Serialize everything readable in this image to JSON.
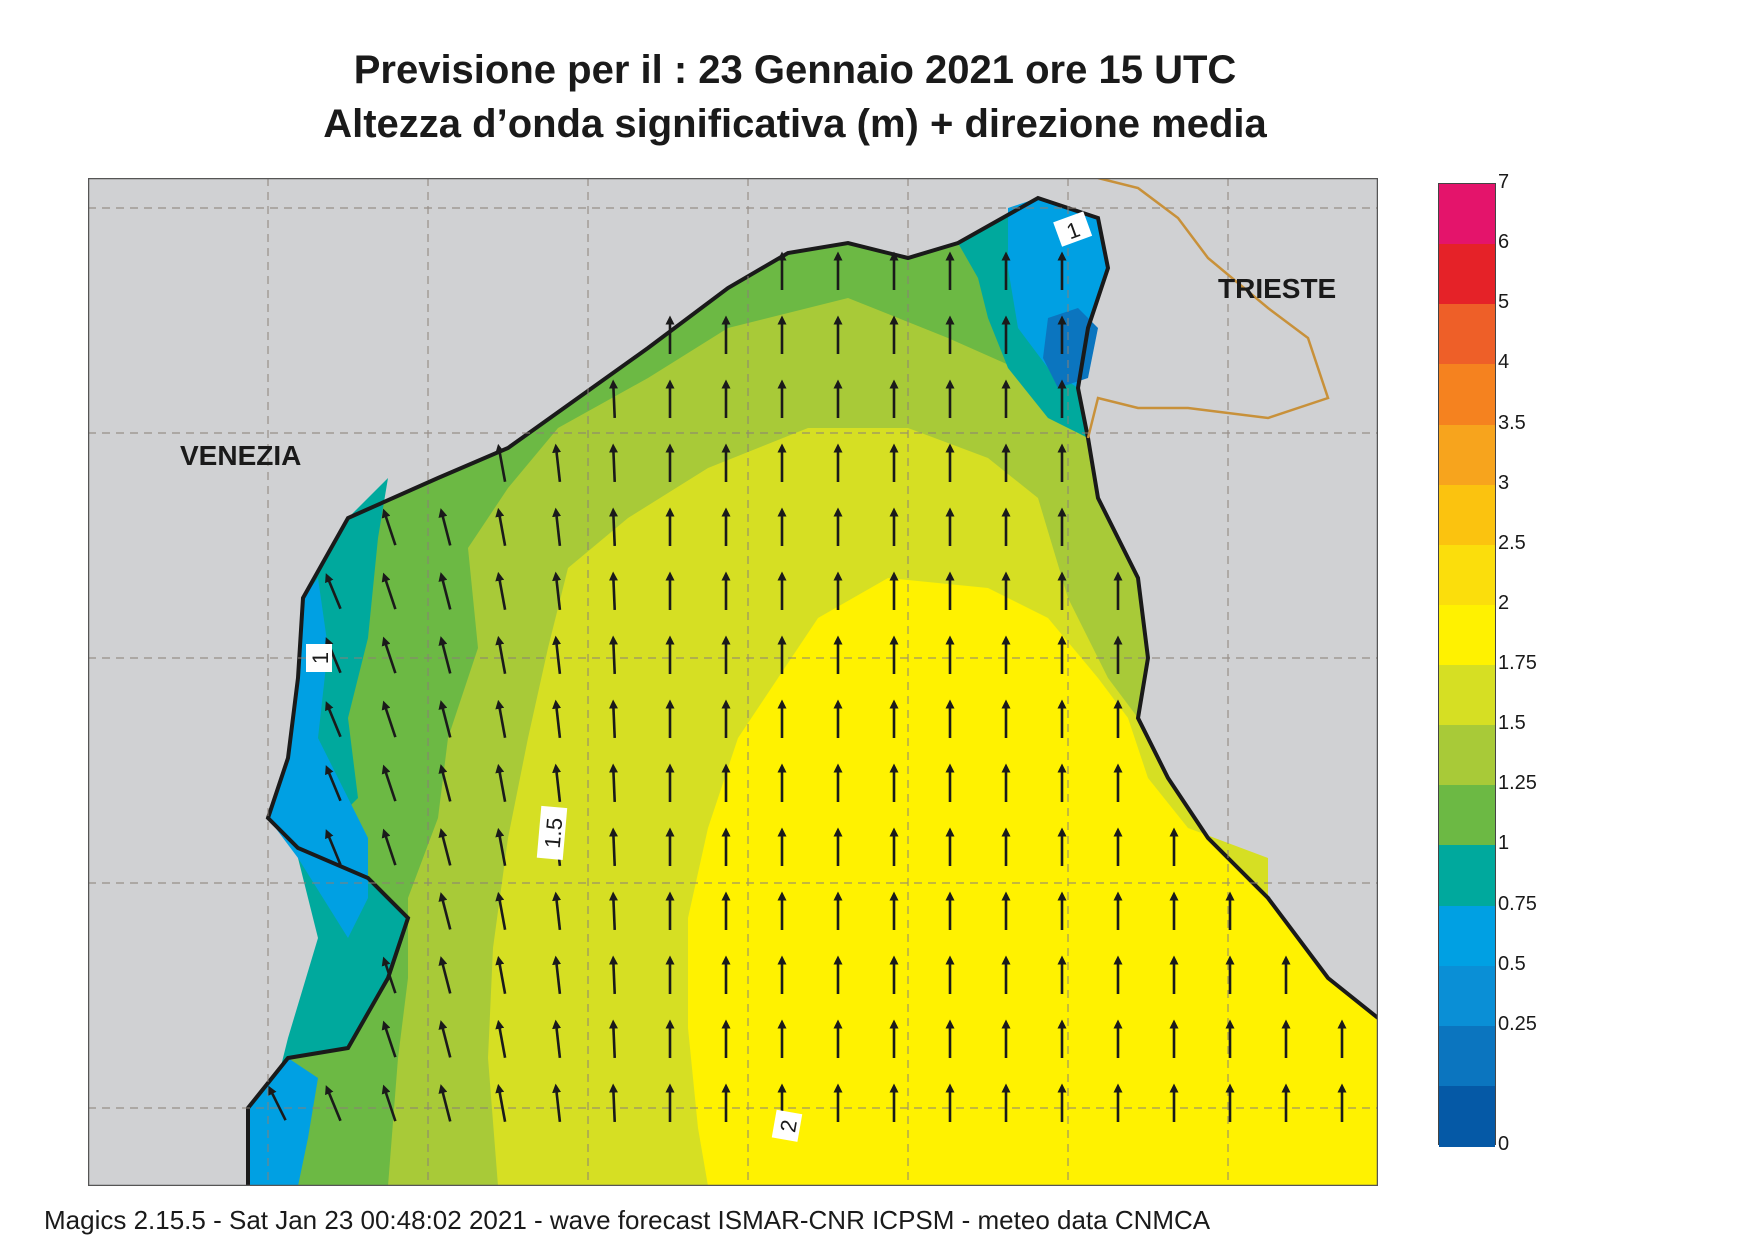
{
  "title": {
    "line1": "Previsione per il  :  23  Gennaio  2021   ore 15 UTC",
    "line2": "Altezza d’onda significativa (m) + direzione media"
  },
  "cities": {
    "venezia": "VENEZIA",
    "trieste": "TRIESTE"
  },
  "contour_labels": [
    {
      "text": "1",
      "at": "north gulf near Trieste"
    },
    {
      "text": "1",
      "at": "coast south of Venezia"
    },
    {
      "text": "1.5",
      "at": "western centre"
    },
    {
      "text": "2",
      "at": "southern centre"
    }
  ],
  "legend": {
    "labels": [
      "7",
      "6",
      "5",
      "4",
      "3.5",
      "3",
      "2.5",
      "2",
      "1.75",
      "1.5",
      "1.25",
      "1",
      "0.75",
      "0.5",
      "0.25",
      "0"
    ],
    "colors": [
      "#e4146b",
      "#e52228",
      "#ee5f28",
      "#f5821f",
      "#f7a41d",
      "#fbc30f",
      "#fbde0c",
      "#fff200",
      "#d6df23",
      "#a8ca38",
      "#6cb944",
      "#00a99d",
      "#00a0e3",
      "#0a8fd6",
      "#0b75bf",
      "#0559a6"
    ]
  },
  "colors": {
    "land": "#d0d1d3",
    "sea_high": "#fff200",
    "coast": "#1a1a1a",
    "border": "#c8913a"
  },
  "footer": "Magics 2.15.5 - Sat Jan 23 00:48:02 2021 - wave forecast  ISMAR-CNR  ICPSM - meteo data   CNMCA"
}
